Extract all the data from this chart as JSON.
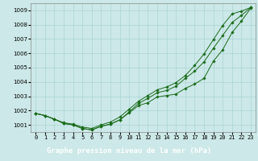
{
  "title": "Graphe pression niveau de la mer (hPa)",
  "hours": [
    0,
    1,
    2,
    3,
    4,
    5,
    6,
    7,
    8,
    9,
    10,
    11,
    12,
    13,
    14,
    15,
    16,
    17,
    18,
    19,
    20,
    21,
    22,
    23
  ],
  "line1": [
    1001.8,
    1001.65,
    1001.4,
    1001.1,
    1001.0,
    1000.75,
    1000.65,
    1000.9,
    1001.05,
    1001.35,
    1001.85,
    1002.35,
    1002.55,
    1002.95,
    1003.05,
    1003.15,
    1003.55,
    1003.85,
    1004.25,
    1005.45,
    1006.25,
    1007.45,
    1008.25,
    1009.15
  ],
  "line2": [
    1001.8,
    1001.65,
    1001.4,
    1001.15,
    1001.05,
    1000.85,
    1000.75,
    1001.0,
    1001.2,
    1001.55,
    1002.1,
    1002.65,
    1003.05,
    1003.45,
    1003.65,
    1003.95,
    1004.45,
    1005.15,
    1005.95,
    1006.95,
    1007.95,
    1008.75,
    1008.95,
    1009.2
  ],
  "line3": [
    1001.8,
    1001.65,
    1001.4,
    1001.1,
    1001.0,
    1000.75,
    1000.65,
    1000.9,
    1001.05,
    1001.35,
    1001.9,
    1002.5,
    1002.85,
    1003.25,
    1003.4,
    1003.7,
    1004.25,
    1004.75,
    1005.4,
    1006.35,
    1007.25,
    1008.15,
    1008.65,
    1009.2
  ],
  "background_color": "#cce8e8",
  "grid_color": "#aad4d4",
  "line_color": "#1a6b1a",
  "marker": "D",
  "marker_size": 1.8,
  "linewidth": 0.7,
  "ylim": [
    1000.5,
    1009.5
  ],
  "yticks": [
    1001,
    1002,
    1003,
    1004,
    1005,
    1006,
    1007,
    1008,
    1009
  ],
  "title_fontsize": 6.5,
  "tick_fontsize": 5.0,
  "title_bg": "#2a7a2a"
}
